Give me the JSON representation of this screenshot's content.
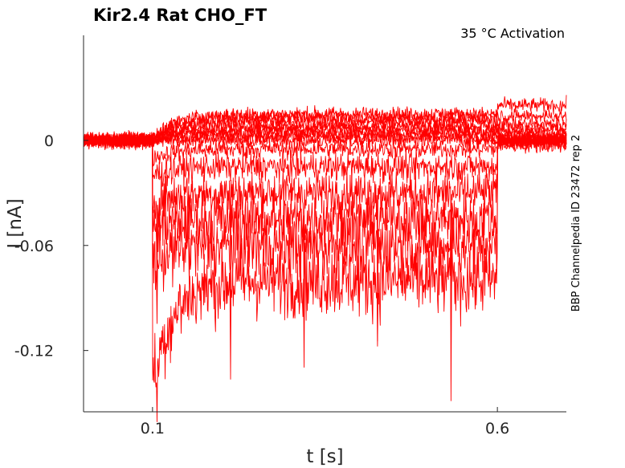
{
  "chart_data": {
    "type": "line",
    "title": "Kir2.4  Rat  CHO_FT",
    "subtitle": "35 °C  Activation",
    "side_label": "BBP Channelpedia ID 23472 rep 2",
    "xlabel": "t [s]",
    "ylabel": "I [nA]",
    "xlim": [
      0.0,
      0.7
    ],
    "ylim": [
      -0.155,
      0.06
    ],
    "x_ticks": [
      0.1,
      0.6
    ],
    "x_tick_labels": [
      "0.1",
      "0.6"
    ],
    "y_ticks": [
      0,
      -0.06,
      -0.12
    ],
    "y_tick_labels": [
      "0",
      "-0.06",
      "-0.12"
    ],
    "grid": false,
    "line_color": "#ff0000",
    "pulse_start": 0.1,
    "pulse_end": 0.6,
    "series": [
      {
        "baseline": 0.0,
        "steady": 0.0,
        "tail": 0.0,
        "noise": 0.004,
        "peak": 0.0
      },
      {
        "baseline": 0.0,
        "steady": 0.002,
        "tail": 0.0,
        "noise": 0.004,
        "peak": 0.0
      },
      {
        "baseline": 0.0,
        "steady": 0.004,
        "tail": 0.002,
        "noise": 0.004,
        "peak": 0.0
      },
      {
        "baseline": 0.0,
        "steady": 0.006,
        "tail": 0.004,
        "noise": 0.004,
        "peak": 0.0
      },
      {
        "baseline": 0.0,
        "steady": 0.008,
        "tail": 0.006,
        "noise": 0.004,
        "peak": 0.0
      },
      {
        "baseline": 0.0,
        "steady": 0.011,
        "tail": 0.009,
        "noise": 0.004,
        "peak": 0.0
      },
      {
        "baseline": 0.0,
        "steady": 0.013,
        "tail": 0.014,
        "noise": 0.004,
        "peak": 0.0
      },
      {
        "baseline": 0.0,
        "steady": 0.015,
        "tail": 0.02,
        "noise": 0.004,
        "peak": 0.0
      },
      {
        "baseline": 0.0,
        "steady": -0.005,
        "tail": -0.003,
        "noise": 0.005,
        "peak": -0.01
      },
      {
        "baseline": 0.0,
        "steady": -0.015,
        "tail": 0.0,
        "noise": 0.008,
        "peak": -0.02
      },
      {
        "baseline": 0.0,
        "steady": -0.03,
        "tail": 0.0,
        "noise": 0.012,
        "peak": -0.035
      },
      {
        "baseline": 0.0,
        "steady": -0.045,
        "tail": 0.0,
        "noise": 0.015,
        "peak": -0.05
      },
      {
        "baseline": 0.0,
        "steady": -0.06,
        "tail": 0.0,
        "noise": 0.018,
        "peak": -0.07
      },
      {
        "baseline": 0.0,
        "steady": -0.08,
        "tail": 0.0,
        "noise": 0.02,
        "peak": -0.138
      }
    ]
  }
}
